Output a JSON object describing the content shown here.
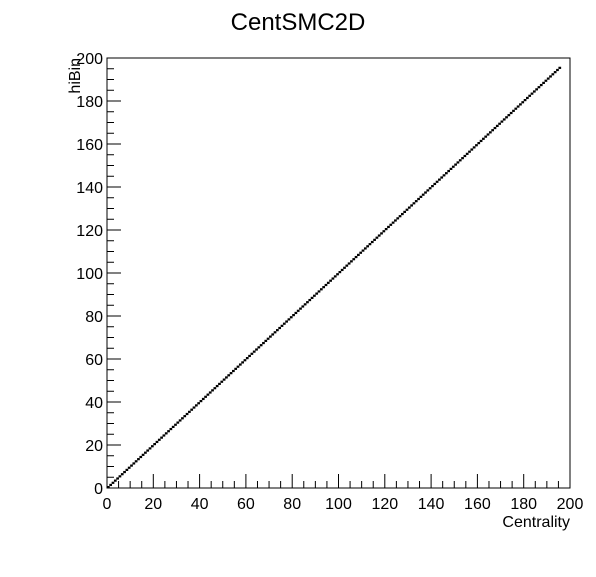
{
  "chart_data": {
    "type": "scatter",
    "title": "CentSMC2D",
    "xlabel": "Centrality",
    "ylabel": "hiBin",
    "xlim": [
      0,
      200
    ],
    "ylim": [
      0,
      200
    ],
    "xticks": [
      0,
      20,
      40,
      60,
      80,
      100,
      120,
      140,
      160,
      180,
      200
    ],
    "yticks": [
      0,
      20,
      40,
      60,
      80,
      100,
      120,
      140,
      160,
      180,
      200
    ],
    "grid": false,
    "legend": "none",
    "colors": {
      "marker": "#000000",
      "frame": "#000000",
      "background": "#ffffff"
    },
    "series": [
      {
        "x_start": 0,
        "x_end": 195,
        "slope": 1,
        "intercept": 0,
        "step": 1
      }
    ]
  }
}
